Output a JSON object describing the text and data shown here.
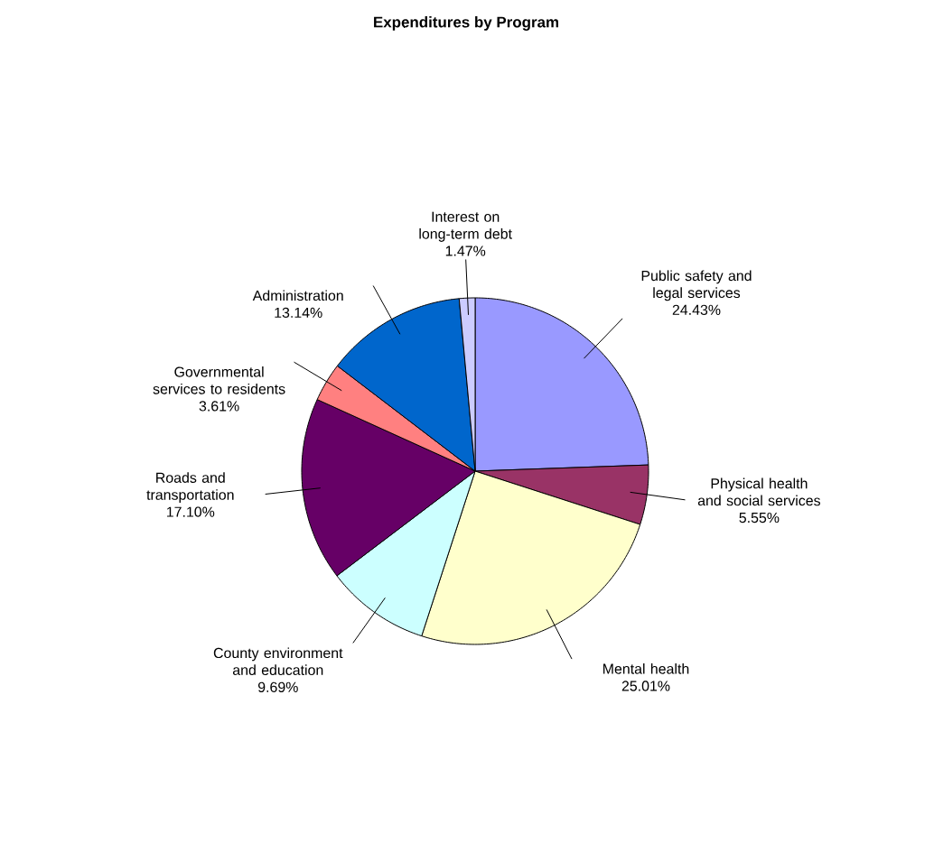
{
  "chart_data": {
    "type": "pie",
    "title": "Expenditures by Program",
    "categories": [
      "Public safety and legal services",
      "Physical health and social services",
      "Mental health",
      "County environment and education",
      "Roads and transportation",
      "Governmental services to residents",
      "Administration",
      "Interest on long-term debt"
    ],
    "values": [
      24.43,
      5.55,
      25.01,
      9.69,
      17.1,
      3.61,
      13.14,
      1.47
    ],
    "value_labels": [
      "24.43%",
      "5.55%",
      "25.01%",
      "9.69%",
      "17.10%",
      "3.61%",
      "13.14%",
      "1.47%"
    ],
    "colors": [
      "#9999ff",
      "#993366",
      "#ffffcc",
      "#ccffff",
      "#660066",
      "#ff8080",
      "#0066cc",
      "#ccccff"
    ]
  }
}
